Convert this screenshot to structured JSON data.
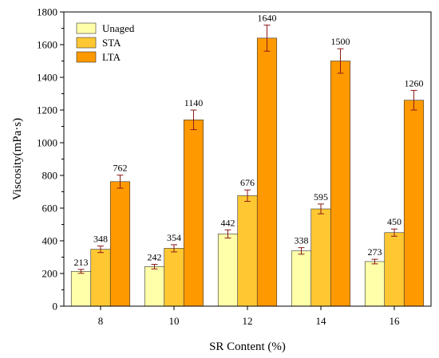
{
  "chart_data": {
    "type": "bar",
    "categories": [
      "8",
      "10",
      "12",
      "14",
      "16"
    ],
    "series": [
      {
        "name": "Unaged",
        "values": [
          213,
          242,
          442,
          338,
          273
        ],
        "errors": [
          12,
          14,
          25,
          20,
          14
        ],
        "color": "#FFFFAA"
      },
      {
        "name": "STA",
        "values": [
          348,
          354,
          676,
          595,
          450
        ],
        "errors": [
          20,
          22,
          35,
          30,
          22
        ],
        "color": "#FFC832"
      },
      {
        "name": "LTA",
        "values": [
          762,
          1140,
          1640,
          1500,
          1260
        ],
        "errors": [
          40,
          60,
          80,
          75,
          60
        ],
        "color": "#FF9900"
      }
    ],
    "data_labels": [
      [
        "213",
        "242",
        "442",
        "338",
        "273"
      ],
      [
        "348",
        "354",
        "676",
        "595",
        "450"
      ],
      [
        "762",
        "1140",
        "1640",
        "1500",
        "1260"
      ]
    ],
    "xlabel": "SR Content (%)",
    "ylabel": "Viscosity(mPa·s)",
    "ylim": [
      0,
      1800
    ],
    "yticks": [
      0,
      200,
      400,
      600,
      800,
      1000,
      1200,
      1400,
      1600,
      1800
    ],
    "legend_position": "top-left",
    "grid": false,
    "bar_edge_color": "#333333",
    "error_bar_color": "#8B1A1A"
  }
}
